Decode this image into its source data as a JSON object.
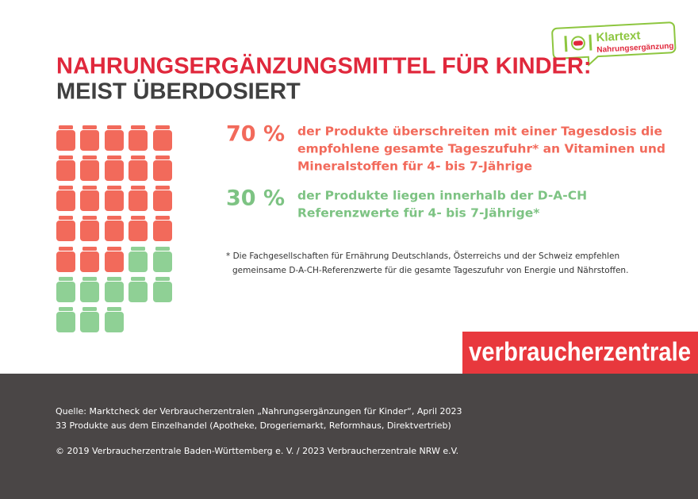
{
  "badge": {
    "title": "Klartext",
    "subtitle": "Nahrungsergänzung"
  },
  "header": {
    "title": "NAHRUNGSERGÄNZUNGSMITTEL FÜR KINDER:",
    "subtitle": "MEIST ÜBERDOSIERT"
  },
  "stats": [
    {
      "percent": "70 %",
      "lines": [
        "der Produkte überschreiten mit einer Tagesdosis die",
        "empfohlene gesamte Tageszufuhr* an Vitaminen und",
        "Mineralstoffen für 4- bis 7-Jährige"
      ]
    },
    {
      "percent": "30 %",
      "lines": [
        "der Produkte liegen innerhalb der D-A-CH",
        "Referenzwerte für 4- bis 7-Jährige*"
      ]
    }
  ],
  "footnote": [
    "* Die Fachgesellschaften für Ernährung Deutschlands, Österreichs und der Schweiz empfehlen",
    "gemeinsame D-A-CH-Referenzwerte für die gesamte Tageszufuhr von Energie und Nährstoffen."
  ],
  "logo": "verbraucherzentrale",
  "footer": [
    "Quelle: Marktcheck der Verbraucherzentralen „Nahrungsergänzungen für Kinder“, April 2023",
    "33 Produkte aus dem Einzelhandel (Apotheke, Drogeriemarkt, Reformhaus, Direktvertrieb)",
    "© 2019 Verbraucherzentrale Baden-Württemberg e. V. / 2023 Verbraucherzentrale NRW e.V."
  ]
}
